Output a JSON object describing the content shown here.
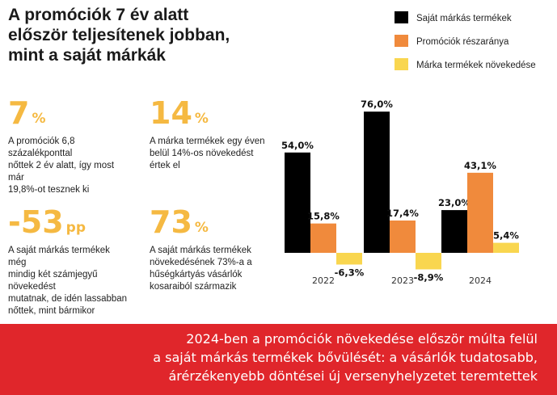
{
  "header": {
    "title_lines": [
      "A promóciók 7 év alatt",
      "először teljesítenek jobban,",
      "mint a saját márkák"
    ]
  },
  "stats": [
    {
      "value": "7",
      "unit": "%",
      "desc_lines": [
        "A promóciók 6,8 százalékponttal",
        "nőttek 2 év alatt, így most már",
        "19,8%-ot tesznek ki"
      ]
    },
    {
      "value": "14",
      "unit": "%",
      "desc_lines": [
        "A márka termékek egy éven",
        "belül 14%-os növekedést",
        "értek el"
      ]
    },
    {
      "value": "-53",
      "unit": "pp",
      "desc_lines": [
        "A saját márkás termékek még",
        "mindig két számjegyű növekedést",
        "mutatnak, de idén lassabban",
        "nőttek, mint bármikor"
      ]
    },
    {
      "value": "73",
      "unit": "%",
      "desc_lines": [
        "A saját márkás termékek",
        "növekedésének 73%-a a",
        "hűségkártyás vásárlók",
        "kosaraiból származik"
      ]
    }
  ],
  "chart_data": {
    "type": "bar",
    "categories": [
      "2022",
      "2023",
      "2024"
    ],
    "series": [
      {
        "name": "Saját márkás termékek",
        "color": "#000000",
        "values": [
          54.0,
          76.0,
          23.0
        ],
        "labels": [
          "54,0%",
          "76,0%",
          "23,0%"
        ]
      },
      {
        "name": "Promóciók részaránya",
        "color": "#f08a3c",
        "values": [
          15.8,
          17.4,
          43.1
        ],
        "labels": [
          "15,8%",
          "17,4%",
          "43,1%"
        ]
      },
      {
        "name": "Márka termékek növekedése",
        "color": "#f9d64f",
        "values": [
          -6.3,
          -8.9,
          5.4
        ],
        "labels": [
          "-6,3%",
          "-8,9%",
          "5,4%"
        ]
      }
    ],
    "ylim": [
      -10,
      80
    ],
    "grid": false,
    "legend": "top-right",
    "title": "",
    "xlabel": "",
    "ylabel": ""
  },
  "banner": {
    "lines": [
      "2024-ben a promóciók növekedése először múlta felül",
      "a saját márkás termékek bővülését: a vásárlók tudatosabb,",
      "árérzékenyebb döntései új versenyhelyzetet teremtettek"
    ]
  }
}
